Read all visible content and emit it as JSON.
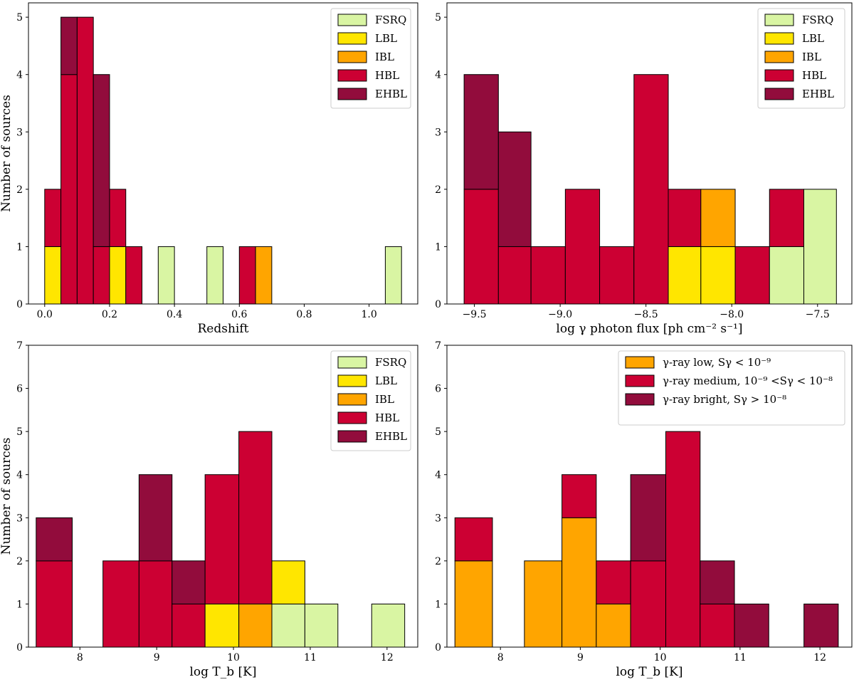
{
  "colors": {
    "FSRQ": "#d9f5a3",
    "LBL": "#ffe600",
    "IBL": "#ffa500",
    "HBL": "#cc0033",
    "EHBL": "#920c3c",
    "low": "#ffa500",
    "medium": "#cc0033",
    "bright": "#920c3c"
  },
  "chart_data": [
    {
      "id": "redshift",
      "type": "bar",
      "stacked": true,
      "title": "",
      "xlabel": "Redshift",
      "ylabel": "Number of sources",
      "xlim": [
        -0.05,
        1.15
      ],
      "ylim": [
        0,
        5.25
      ],
      "xticks": [
        0.0,
        0.2,
        0.4,
        0.6,
        0.8,
        1.0
      ],
      "xtick_labels": [
        "0.0",
        "0.2",
        "0.4",
        "0.6",
        "0.8",
        "1.0"
      ],
      "yticks": [
        0,
        1,
        2,
        3,
        4,
        5
      ],
      "ytick_labels": [
        "0",
        "1",
        "2",
        "3",
        "4",
        "5"
      ],
      "legend": {
        "placement": "top-right",
        "entries": [
          {
            "key": "FSRQ",
            "label": "FSRQ"
          },
          {
            "key": "LBL",
            "label": "LBL"
          },
          {
            "key": "IBL",
            "label": "IBL"
          },
          {
            "key": "HBL",
            "label": "HBL"
          },
          {
            "key": "EHBL",
            "label": "EHBL"
          }
        ]
      },
      "bars": [
        {
          "x0": 0.0,
          "x1": 0.05,
          "segments": [
            {
              "cls": "LBL",
              "y0": 0,
              "y1": 1
            },
            {
              "cls": "HBL",
              "y0": 1,
              "y1": 2
            }
          ]
        },
        {
          "x0": 0.05,
          "x1": 0.1,
          "segments": [
            {
              "cls": "HBL",
              "y0": 0,
              "y1": 4
            },
            {
              "cls": "EHBL",
              "y0": 4,
              "y1": 5
            }
          ]
        },
        {
          "x0": 0.1,
          "x1": 0.15,
          "segments": [
            {
              "cls": "HBL",
              "y0": 0,
              "y1": 5
            }
          ]
        },
        {
          "x0": 0.15,
          "x1": 0.2,
          "segments": [
            {
              "cls": "HBL",
              "y0": 0,
              "y1": 1
            },
            {
              "cls": "EHBL",
              "y0": 1,
              "y1": 4
            }
          ]
        },
        {
          "x0": 0.2,
          "x1": 0.25,
          "segments": [
            {
              "cls": "LBL",
              "y0": 0,
              "y1": 1
            },
            {
              "cls": "HBL",
              "y0": 1,
              "y1": 2
            }
          ]
        },
        {
          "x0": 0.25,
          "x1": 0.3,
          "segments": [
            {
              "cls": "HBL",
              "y0": 0,
              "y1": 1
            }
          ]
        },
        {
          "x0": 0.35,
          "x1": 0.4,
          "segments": [
            {
              "cls": "FSRQ",
              "y0": 0,
              "y1": 1
            }
          ]
        },
        {
          "x0": 0.5,
          "x1": 0.55,
          "segments": [
            {
              "cls": "FSRQ",
              "y0": 0,
              "y1": 1
            }
          ]
        },
        {
          "x0": 0.6,
          "x1": 0.65,
          "segments": [
            {
              "cls": "HBL",
              "y0": 0,
              "y1": 1
            }
          ]
        },
        {
          "x0": 0.65,
          "x1": 0.7,
          "segments": [
            {
              "cls": "IBL",
              "y0": 0,
              "y1": 1
            }
          ]
        },
        {
          "x0": 1.05,
          "x1": 1.1,
          "segments": [
            {
              "cls": "FSRQ",
              "y0": 0,
              "y1": 1
            }
          ]
        }
      ]
    },
    {
      "id": "photon-flux",
      "type": "bar",
      "stacked": true,
      "title": "",
      "xlabel": "log γ photon flux [ph cm⁻² s⁻¹]",
      "ylabel": "",
      "xlim": [
        -9.66,
        -7.3
      ],
      "ylim": [
        0,
        5.25
      ],
      "xticks": [
        -9.5,
        -9.0,
        -8.5,
        -8.0,
        -7.5
      ],
      "xtick_labels": [
        "−9.5",
        "−9.0",
        "−8.5",
        "−8.0",
        "−7.5"
      ],
      "yticks": [
        0,
        1,
        2,
        3,
        4,
        5
      ],
      "ytick_labels": [
        "0",
        "1",
        "2",
        "3",
        "4",
        "5"
      ],
      "legend": {
        "placement": "top-right",
        "entries": [
          {
            "key": "FSRQ",
            "label": "FSRQ"
          },
          {
            "key": "LBL",
            "label": "LBL"
          },
          {
            "key": "IBL",
            "label": "IBL"
          },
          {
            "key": "HBL",
            "label": "HBL"
          },
          {
            "key": "EHBL",
            "label": "EHBL"
          }
        ]
      },
      "bars": [
        {
          "x0": -9.56,
          "x1": -9.36,
          "segments": [
            {
              "cls": "HBL",
              "y0": 0,
              "y1": 2
            },
            {
              "cls": "EHBL",
              "y0": 2,
              "y1": 4
            }
          ]
        },
        {
          "x0": -9.36,
          "x1": -9.17,
          "segments": [
            {
              "cls": "HBL",
              "y0": 0,
              "y1": 1
            },
            {
              "cls": "EHBL",
              "y0": 1,
              "y1": 3
            }
          ]
        },
        {
          "x0": -9.17,
          "x1": -8.97,
          "segments": [
            {
              "cls": "HBL",
              "y0": 0,
              "y1": 1
            }
          ]
        },
        {
          "x0": -8.97,
          "x1": -8.77,
          "segments": [
            {
              "cls": "HBL",
              "y0": 0,
              "y1": 2
            }
          ]
        },
        {
          "x0": -8.77,
          "x1": -8.57,
          "segments": [
            {
              "cls": "HBL",
              "y0": 0,
              "y1": 1
            }
          ]
        },
        {
          "x0": -8.57,
          "x1": -8.37,
          "segments": [
            {
              "cls": "HBL",
              "y0": 0,
              "y1": 4
            }
          ]
        },
        {
          "x0": -8.37,
          "x1": -8.18,
          "segments": [
            {
              "cls": "LBL",
              "y0": 0,
              "y1": 1
            },
            {
              "cls": "HBL",
              "y0": 1,
              "y1": 2
            }
          ]
        },
        {
          "x0": -8.18,
          "x1": -7.98,
          "segments": [
            {
              "cls": "LBL",
              "y0": 0,
              "y1": 1
            },
            {
              "cls": "IBL",
              "y0": 1,
              "y1": 2
            }
          ]
        },
        {
          "x0": -7.98,
          "x1": -7.78,
          "segments": [
            {
              "cls": "HBL",
              "y0": 0,
              "y1": 1
            }
          ]
        },
        {
          "x0": -7.78,
          "x1": -7.58,
          "segments": [
            {
              "cls": "FSRQ",
              "y0": 0,
              "y1": 1
            },
            {
              "cls": "HBL",
              "y0": 1,
              "y1": 2
            }
          ]
        },
        {
          "x0": -7.58,
          "x1": -7.39,
          "segments": [
            {
              "cls": "FSRQ",
              "y0": 0,
              "y1": 2
            }
          ]
        }
      ]
    },
    {
      "id": "tb-class",
      "type": "bar",
      "stacked": true,
      "title": "",
      "xlabel": "log T_b [K]",
      "ylabel": "Number of sources",
      "xlim": [
        7.33,
        12.4
      ],
      "ylim": [
        0,
        7
      ],
      "xticks": [
        8,
        9,
        10,
        11,
        12
      ],
      "xtick_labels": [
        "8",
        "9",
        "10",
        "11",
        "12"
      ],
      "yticks": [
        0,
        1,
        2,
        3,
        4,
        5,
        6,
        7
      ],
      "ytick_labels": [
        "0",
        "1",
        "2",
        "3",
        "4",
        "5",
        "6",
        "7"
      ],
      "legend": {
        "placement": "top-right",
        "entries": [
          {
            "key": "FSRQ",
            "label": "FSRQ"
          },
          {
            "key": "LBL",
            "label": "LBL"
          },
          {
            "key": "IBL",
            "label": "IBL"
          },
          {
            "key": "HBL",
            "label": "HBL"
          },
          {
            "key": "EHBL",
            "label": "EHBL"
          }
        ]
      },
      "bars": [
        {
          "x0": 7.43,
          "x1": 7.9,
          "segments": [
            {
              "cls": "HBL",
              "y0": 0,
              "y1": 2
            },
            {
              "cls": "EHBL",
              "y0": 2,
              "y1": 3
            }
          ]
        },
        {
          "x0": 8.3,
          "x1": 8.77,
          "segments": [
            {
              "cls": "HBL",
              "y0": 0,
              "y1": 2
            }
          ]
        },
        {
          "x0": 8.77,
          "x1": 9.2,
          "segments": [
            {
              "cls": "HBL",
              "y0": 0,
              "y1": 2
            },
            {
              "cls": "EHBL",
              "y0": 2,
              "y1": 4
            }
          ]
        },
        {
          "x0": 9.2,
          "x1": 9.63,
          "segments": [
            {
              "cls": "HBL",
              "y0": 0,
              "y1": 1
            },
            {
              "cls": "EHBL",
              "y0": 1,
              "y1": 2
            }
          ]
        },
        {
          "x0": 9.63,
          "x1": 10.07,
          "segments": [
            {
              "cls": "LBL",
              "y0": 0,
              "y1": 1
            },
            {
              "cls": "HBL",
              "y0": 1,
              "y1": 4
            }
          ]
        },
        {
          "x0": 10.07,
          "x1": 10.5,
          "segments": [
            {
              "cls": "IBL",
              "y0": 0,
              "y1": 1
            },
            {
              "cls": "HBL",
              "y0": 1,
              "y1": 5
            }
          ]
        },
        {
          "x0": 10.5,
          "x1": 10.93,
          "segments": [
            {
              "cls": "FSRQ",
              "y0": 0,
              "y1": 1
            },
            {
              "cls": "LBL",
              "y0": 1,
              "y1": 2
            }
          ]
        },
        {
          "x0": 10.93,
          "x1": 11.36,
          "segments": [
            {
              "cls": "FSRQ",
              "y0": 0,
              "y1": 1
            }
          ]
        },
        {
          "x0": 11.8,
          "x1": 12.23,
          "segments": [
            {
              "cls": "FSRQ",
              "y0": 0,
              "y1": 1
            }
          ]
        }
      ]
    },
    {
      "id": "tb-gamma",
      "type": "bar",
      "stacked": true,
      "title": "",
      "xlabel": "log T_b [K]",
      "ylabel": "",
      "xlim": [
        7.33,
        12.4
      ],
      "ylim": [
        0,
        7
      ],
      "xticks": [
        8,
        9,
        10,
        11,
        12
      ],
      "xtick_labels": [
        "8",
        "9",
        "10",
        "11",
        "12"
      ],
      "yticks": [
        0,
        1,
        2,
        3,
        4,
        5,
        6,
        7
      ],
      "ytick_labels": [
        "0",
        "1",
        "2",
        "3",
        "4",
        "5",
        "6",
        "7"
      ],
      "legend": {
        "placement": "top-right",
        "entries": [
          {
            "key": "low",
            "label": "γ-ray low, Sγ < 10⁻⁹"
          },
          {
            "key": "medium",
            "label": "γ-ray medium, 10⁻⁹ <Sγ < 10⁻⁸"
          },
          {
            "key": "bright",
            "label": "γ-ray bright, Sγ > 10⁻⁸"
          }
        ]
      },
      "bars": [
        {
          "x0": 7.43,
          "x1": 7.9,
          "segments": [
            {
              "cls": "low",
              "y0": 0,
              "y1": 2
            },
            {
              "cls": "medium",
              "y0": 2,
              "y1": 3
            }
          ]
        },
        {
          "x0": 8.3,
          "x1": 8.77,
          "segments": [
            {
              "cls": "low",
              "y0": 0,
              "y1": 2
            }
          ]
        },
        {
          "x0": 8.77,
          "x1": 9.2,
          "segments": [
            {
              "cls": "low",
              "y0": 0,
              "y1": 3
            },
            {
              "cls": "medium",
              "y0": 3,
              "y1": 4
            }
          ]
        },
        {
          "x0": 9.2,
          "x1": 9.63,
          "segments": [
            {
              "cls": "low",
              "y0": 0,
              "y1": 1
            },
            {
              "cls": "medium",
              "y0": 1,
              "y1": 2
            }
          ]
        },
        {
          "x0": 9.63,
          "x1": 10.07,
          "segments": [
            {
              "cls": "medium",
              "y0": 0,
              "y1": 2
            },
            {
              "cls": "bright",
              "y0": 2,
              "y1": 4
            }
          ]
        },
        {
          "x0": 10.07,
          "x1": 10.5,
          "segments": [
            {
              "cls": "medium",
              "y0": 0,
              "y1": 5
            }
          ]
        },
        {
          "x0": 10.5,
          "x1": 10.93,
          "segments": [
            {
              "cls": "medium",
              "y0": 0,
              "y1": 1
            },
            {
              "cls": "bright",
              "y0": 1,
              "y1": 2
            }
          ]
        },
        {
          "x0": 10.93,
          "x1": 11.36,
          "segments": [
            {
              "cls": "bright",
              "y0": 0,
              "y1": 1
            }
          ]
        },
        {
          "x0": 11.8,
          "x1": 12.23,
          "segments": [
            {
              "cls": "bright",
              "y0": 0,
              "y1": 1
            }
          ]
        }
      ]
    }
  ]
}
